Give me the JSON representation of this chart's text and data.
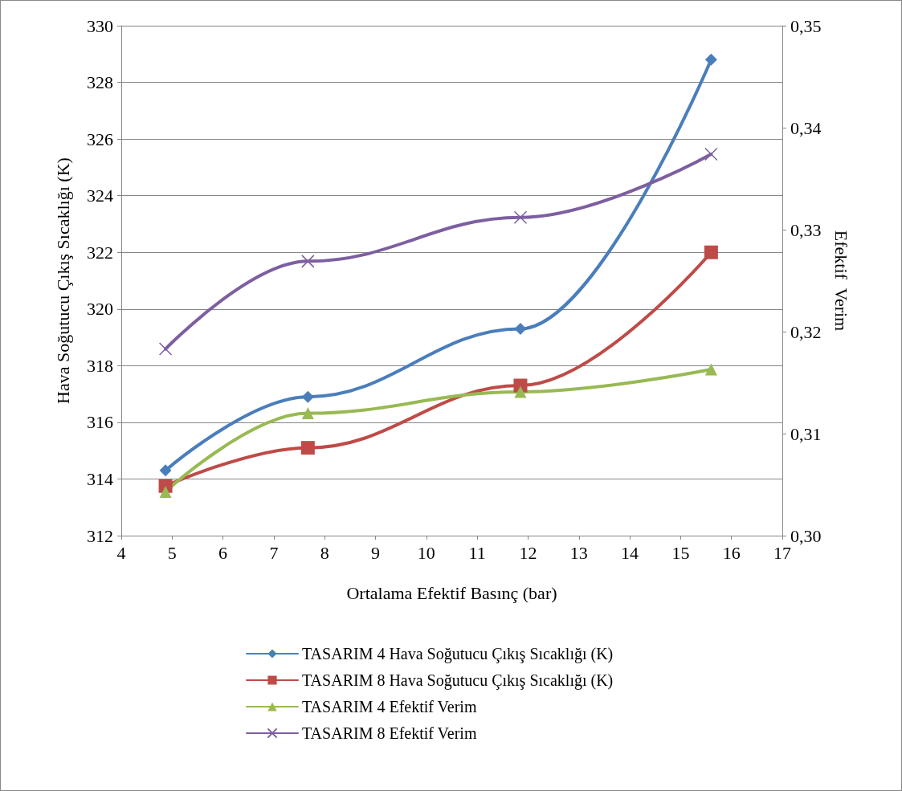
{
  "chart_data": {
    "type": "line",
    "xlabel": "Ortalama Efektif Basınç (bar)",
    "ylabel": "Hava Soğutucu Çıkış Sıcaklığı (K)",
    "y2label": "Efektif  Verim",
    "x": [
      4.87,
      7.67,
      11.85,
      15.6
    ],
    "series": [
      {
        "name": "TASARIM 4 Hava Soğutucu Çıkış Sıcaklığı (K)",
        "color": "#4a7ebb",
        "marker": "diamond",
        "values": [
          314.3,
          316.9,
          319.3,
          328.8
        ]
      },
      {
        "name": "TASARIM 8 Hava Soğutucu Çıkış Sıcaklığı (K)",
        "color": "#be4b48",
        "marker": "square",
        "values": [
          313.75,
          315.1,
          317.3,
          322.0
        ]
      },
      {
        "name": "TASARIM 4 Efektif Verim",
        "color": "#98b954",
        "marker": "triangle",
        "axis": "y2",
        "values": [
          0.3043,
          0.312,
          0.3141,
          0.3163
        ]
      },
      {
        "name": "TASARIM 8 Efektif Verim",
        "color": "#7d5fa0",
        "marker": "cross",
        "axis": "y2",
        "values": [
          0.3183,
          0.3269,
          0.3312,
          0.3374
        ]
      }
    ],
    "xlim": [
      4,
      17
    ],
    "xticks": [
      4,
      5,
      6,
      7,
      8,
      9,
      10,
      11,
      12,
      13,
      14,
      15,
      16,
      17
    ],
    "ylim": [
      312,
      330
    ],
    "yticks": [
      312,
      314,
      316,
      318,
      320,
      322,
      324,
      326,
      328,
      330
    ],
    "y2lim": [
      0.3,
      0.35
    ],
    "y2ticks": [
      {
        "value": 0.3,
        "label": "0,30"
      },
      {
        "value": 0.31,
        "label": "0,31"
      },
      {
        "value": 0.32,
        "label": "0,32"
      },
      {
        "value": 0.33,
        "label": "0,33"
      },
      {
        "value": 0.34,
        "label": "0,34"
      },
      {
        "value": 0.35,
        "label": "0,35"
      }
    ],
    "grid": "y",
    "legend": "bottom",
    "line_style": "solid"
  }
}
